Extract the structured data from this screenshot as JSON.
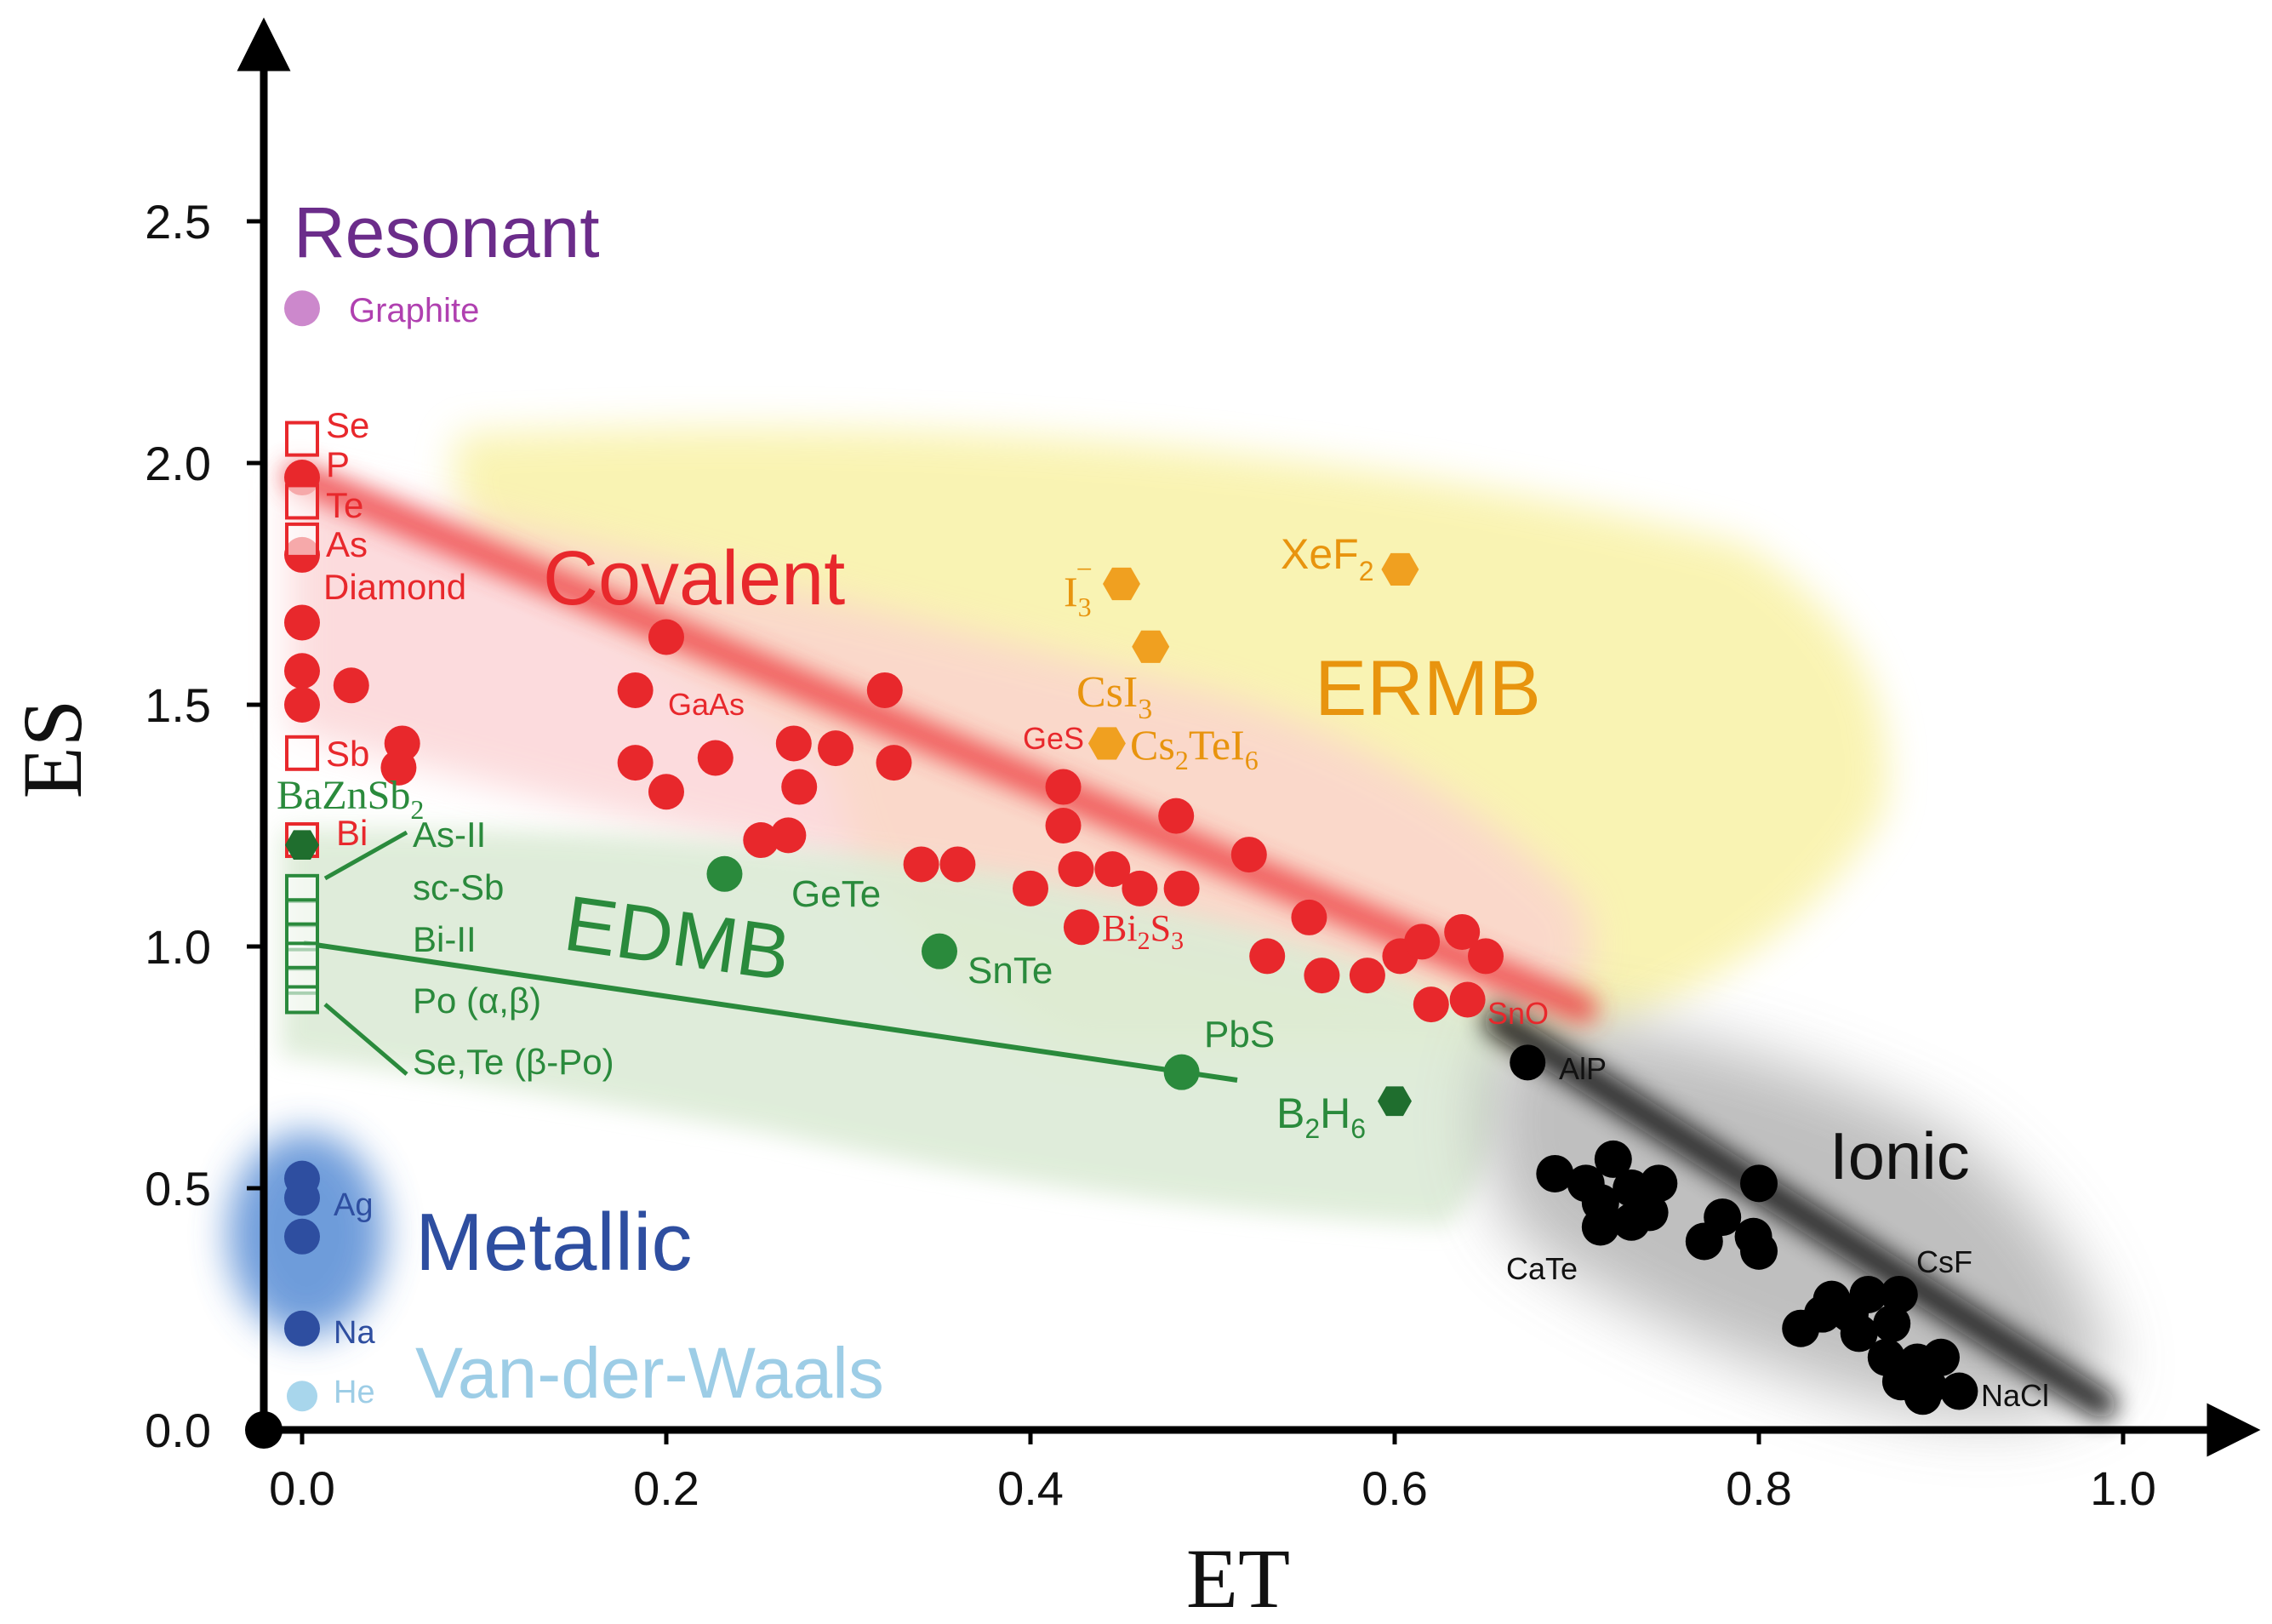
{
  "chart_data": {
    "type": "scatter",
    "title": "",
    "xlabel": "ET",
    "ylabel": "ES",
    "xlim": [
      -0.02,
      1.05
    ],
    "ylim": [
      0,
      2.85
    ],
    "x_ticks": [
      "0.0",
      "0.2",
      "0.4",
      "0.6",
      "0.8",
      "1.0"
    ],
    "x_tick_values": [
      0.0,
      0.2,
      0.4,
      0.6,
      0.8,
      1.0
    ],
    "y_ticks": [
      "0.0",
      "0.5",
      "1.0",
      "1.5",
      "2.0",
      "2.5"
    ],
    "y_tick_values": [
      0.0,
      0.5,
      1.0,
      1.5,
      2.0,
      2.5
    ],
    "regions": [
      {
        "name": "Resonant",
        "color": "#6b2c8a"
      },
      {
        "name": "Covalent",
        "color": "#e8282c"
      },
      {
        "name": "ERMB",
        "color": "#e8940e"
      },
      {
        "name": "EDMB",
        "color": "#2a8a3c"
      },
      {
        "name": "Ionic",
        "color": "#111111"
      },
      {
        "name": "Metallic",
        "color": "#2e4ea0"
      },
      {
        "name": "Van-der-Waals",
        "color": "#9dcde6"
      }
    ],
    "series": [
      {
        "name": "Resonant",
        "color": "#cc88cc",
        "points": [
          [
            0.0,
            2.32
          ]
        ]
      },
      {
        "name": "Covalent",
        "color": "#e8282c",
        "points": [
          [
            0.0,
            1.97
          ],
          [
            0.0,
            1.81
          ],
          [
            0.0,
            1.67
          ],
          [
            0.0,
            1.57
          ],
          [
            0.0,
            1.5
          ],
          [
            0.027,
            1.54
          ],
          [
            0.055,
            1.42
          ],
          [
            0.053,
            1.37
          ],
          [
            0.2,
            1.64
          ],
          [
            0.183,
            1.53
          ],
          [
            0.183,
            1.38
          ],
          [
            0.2,
            1.32
          ],
          [
            0.227,
            1.39
          ],
          [
            0.252,
            1.22
          ],
          [
            0.267,
            1.23
          ],
          [
            0.27,
            1.42
          ],
          [
            0.273,
            1.33
          ],
          [
            0.293,
            1.41
          ],
          [
            0.32,
            1.53
          ],
          [
            0.325,
            1.38
          ],
          [
            0.34,
            1.17
          ],
          [
            0.36,
            1.17
          ],
          [
            0.4,
            1.12
          ],
          [
            0.418,
            1.33
          ],
          [
            0.418,
            1.25
          ],
          [
            0.425,
            1.16
          ],
          [
            0.428,
            1.04
          ],
          [
            0.445,
            1.16
          ],
          [
            0.46,
            1.12
          ],
          [
            0.48,
            1.27
          ],
          [
            0.483,
            1.12
          ],
          [
            0.52,
            1.19
          ],
          [
            0.53,
            0.98
          ],
          [
            0.553,
            1.06
          ],
          [
            0.56,
            0.94
          ],
          [
            0.585,
            0.94
          ],
          [
            0.603,
            0.98
          ],
          [
            0.615,
            1.01
          ],
          [
            0.62,
            0.88
          ],
          [
            0.637,
            1.03
          ],
          [
            0.64,
            0.89
          ],
          [
            0.65,
            0.98
          ]
        ]
      },
      {
        "name": "Covalent (open squares)",
        "color": "#e8282c",
        "points": [
          [
            0.0,
            2.05
          ],
          [
            0.0,
            1.92
          ],
          [
            0.0,
            1.84
          ],
          [
            0.0,
            1.4
          ],
          [
            0.0,
            1.22
          ]
        ]
      },
      {
        "name": "ERMB",
        "color": "#f0a020",
        "points": [
          [
            0.45,
            1.75
          ],
          [
            0.466,
            1.62
          ],
          [
            0.442,
            1.42
          ],
          [
            0.603,
            1.78
          ]
        ]
      },
      {
        "name": "EDMB",
        "color": "#2a8a3c",
        "points": [
          [
            0.0,
            1.21
          ],
          [
            0.232,
            1.15
          ],
          [
            0.35,
            0.99
          ],
          [
            0.483,
            0.74
          ],
          [
            0.6,
            0.68
          ]
        ]
      },
      {
        "name": "EDMB (open squares)",
        "color": "#2a8a3c",
        "points": [
          [
            0.0,
            1.12
          ],
          [
            0.0,
            1.07
          ],
          [
            0.0,
            1.02
          ],
          [
            0.0,
            0.98
          ],
          [
            0.0,
            0.93
          ],
          [
            0.0,
            0.89
          ]
        ]
      },
      {
        "name": "Ionic",
        "color": "#000000",
        "points": [
          [
            0.673,
            0.76
          ],
          [
            0.688,
            0.53
          ],
          [
            0.705,
            0.51
          ],
          [
            0.72,
            0.56
          ],
          [
            0.73,
            0.5
          ],
          [
            0.73,
            0.43
          ],
          [
            0.74,
            0.45
          ],
          [
            0.745,
            0.51
          ],
          [
            0.713,
            0.47
          ],
          [
            0.713,
            0.42
          ],
          [
            0.77,
            0.39
          ],
          [
            0.78,
            0.44
          ],
          [
            0.8,
            0.51
          ],
          [
            0.8,
            0.37
          ],
          [
            0.797,
            0.4
          ],
          [
            0.823,
            0.21
          ],
          [
            0.835,
            0.24
          ],
          [
            0.84,
            0.27
          ],
          [
            0.85,
            0.24
          ],
          [
            0.855,
            0.2
          ],
          [
            0.86,
            0.28
          ],
          [
            0.87,
            0.15
          ],
          [
            0.873,
            0.22
          ],
          [
            0.878,
            0.1
          ],
          [
            0.887,
            0.14
          ],
          [
            0.893,
            0.09
          ],
          [
            0.89,
            0.07
          ],
          [
            0.9,
            0.15
          ],
          [
            0.91,
            0.08
          ],
          [
            0.877,
            0.28
          ]
        ]
      },
      {
        "name": "Metallic",
        "color": "#2e4ea0",
        "points": [
          [
            0.0,
            0.52
          ],
          [
            0.0,
            0.48
          ],
          [
            0.0,
            0.4
          ],
          [
            0.0,
            0.21
          ]
        ]
      },
      {
        "name": "Van-der-Waals",
        "color": "#a8d6ec",
        "points": [
          [
            0.0,
            0.07
          ]
        ]
      }
    ],
    "fit_line": {
      "name": "EDMB line",
      "color": "#2a8a3c",
      "points": [
        [
          0.0,
          1.02
        ],
        [
          0.51,
          0.73
        ]
      ]
    },
    "annotations": [
      {
        "text": "Graphite",
        "x": 0.0,
        "y": 2.32
      },
      {
        "text": "Se",
        "x": 0.0,
        "y": 2.05
      },
      {
        "text": "P",
        "x": 0.0,
        "y": 1.97
      },
      {
        "text": "Te",
        "x": 0.0,
        "y": 1.92
      },
      {
        "text": "As",
        "x": 0.0,
        "y": 1.84
      },
      {
        "text": "Diamond",
        "x": 0.0,
        "y": 1.81
      },
      {
        "text": "Sb",
        "x": 0.0,
        "y": 1.4
      },
      {
        "text": "Bi",
        "x": 0.0,
        "y": 1.22
      },
      {
        "text": "GaAs",
        "x": 0.2,
        "y": 1.53
      },
      {
        "text": "GeS",
        "x": 0.44,
        "y": 1.42
      },
      {
        "text": "SnO",
        "x": 0.65,
        "y": 0.89
      },
      {
        "text": "GeTe",
        "x": 0.232,
        "y": 1.15
      },
      {
        "text": "SnTe",
        "x": 0.35,
        "y": 0.99
      },
      {
        "text": "PbS",
        "x": 0.483,
        "y": 0.74
      },
      {
        "text": "As-II",
        "x": 0.0,
        "y": 1.12
      },
      {
        "text": "sc-Sb",
        "x": 0.0,
        "y": 1.07
      },
      {
        "text": "Bi-II",
        "x": 0.0,
        "y": 1.02
      },
      {
        "text": "Po (α,β)",
        "x": 0.0,
        "y": 0.93
      },
      {
        "text": "Se,Te (β-Po)",
        "x": 0.0,
        "y": 0.89
      },
      {
        "text": "AlP",
        "x": 0.673,
        "y": 0.76
      },
      {
        "text": "CaTe",
        "x": 0.713,
        "y": 0.42
      },
      {
        "text": "CsF",
        "x": 0.877,
        "y": 0.28
      },
      {
        "text": "NaCl",
        "x": 0.91,
        "y": 0.08
      },
      {
        "text": "Ag",
        "x": 0.0,
        "y": 0.48
      },
      {
        "text": "Na",
        "x": 0.0,
        "y": 0.21
      },
      {
        "text": "He",
        "x": 0.0,
        "y": 0.07
      }
    ],
    "formula_labels": [
      {
        "base": "I",
        "sub": "3",
        "sup": "−"
      },
      {
        "base": "CsI",
        "sub": "3"
      },
      {
        "base": "Cs",
        "sub": "2",
        "mid": "TeI",
        "sub2": "6"
      },
      {
        "base": "XeF",
        "sub": "2"
      },
      {
        "base": "BaZnSb",
        "sub": "2"
      },
      {
        "base": "Bi",
        "sub": "2",
        "mid": "S",
        "sub2": "3"
      },
      {
        "base": "B",
        "sub": "2",
        "mid": "H",
        "sub2": "6"
      }
    ]
  }
}
